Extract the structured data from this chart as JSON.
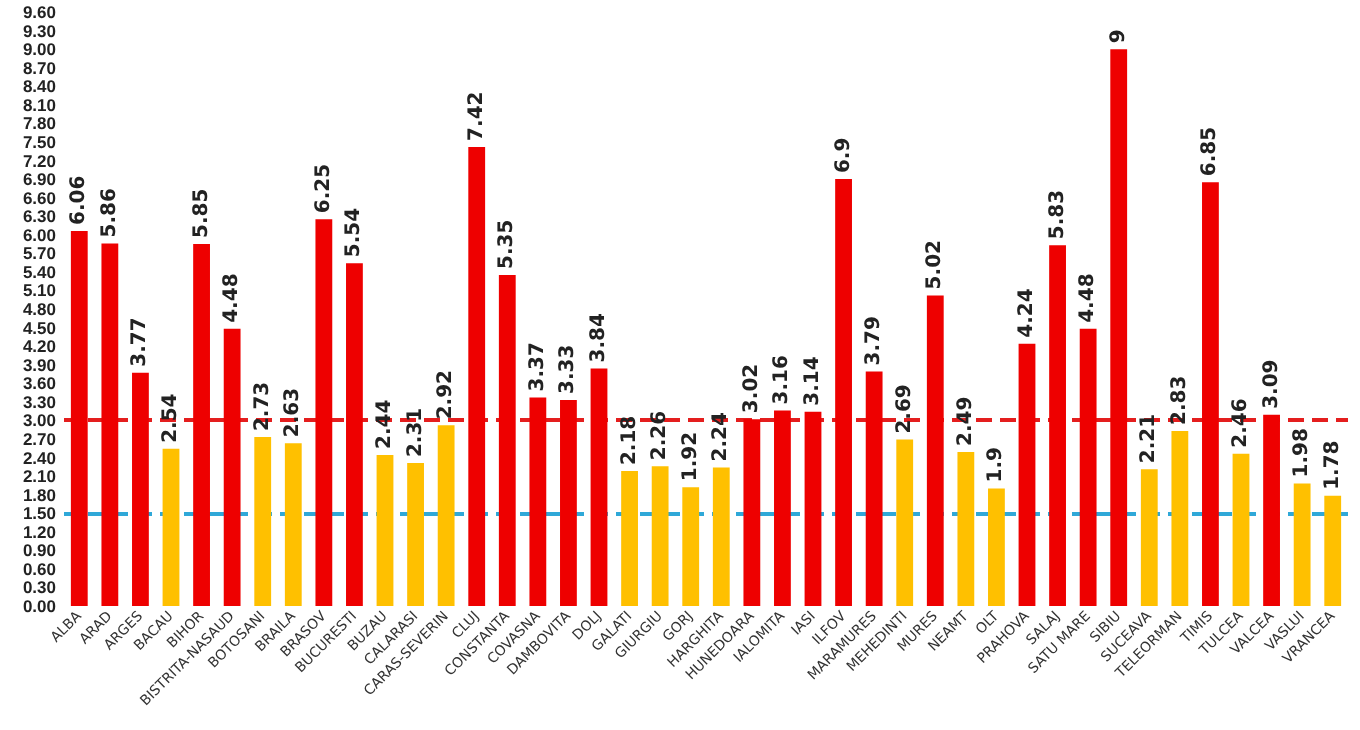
{
  "chart_data": {
    "type": "bar",
    "categories": [
      "ALBA",
      "ARAD",
      "ARGES",
      "BACAU",
      "BIHOR",
      "BISTRITA-NASAUD",
      "BOTOSANI",
      "BRAILA",
      "BRASOV",
      "BUCURESTI",
      "BUZAU",
      "CALARASI",
      "CARAS-SEVERIN",
      "CLUJ",
      "CONSTANTA",
      "COVASNA",
      "DAMBOVITA",
      "DOLJ",
      "GALATI",
      "GIURGIU",
      "GORJ",
      "HARGHITA",
      "HUNEDOARA",
      "IALOMITA",
      "IASI",
      "ILFOV",
      "MARAMURES",
      "MEHEDINTI",
      "MURES",
      "NEAMT",
      "OLT",
      "PRAHOVA",
      "SALAJ",
      "SATU MARE",
      "SIBIU",
      "SUCEAVA",
      "TELEORMAN",
      "TIMIS",
      "TULCEA",
      "VALCEA",
      "VASLUI",
      "VRANCEA"
    ],
    "values": [
      6.06,
      5.86,
      3.77,
      2.54,
      5.85,
      4.48,
      2.73,
      2.63,
      6.25,
      5.54,
      2.44,
      2.31,
      2.92,
      7.42,
      5.35,
      3.37,
      3.33,
      3.84,
      2.18,
      2.26,
      1.92,
      2.24,
      3.02,
      3.16,
      3.14,
      6.9,
      3.79,
      2.69,
      5.02,
      2.49,
      1.9,
      4.24,
      5.83,
      4.48,
      9,
      2.21,
      2.83,
      6.85,
      2.46,
      3.09,
      1.98,
      1.78
    ],
    "colors": [
      "#ee0000",
      "#ee0000",
      "#ee0000",
      "#ffc000",
      "#ee0000",
      "#ee0000",
      "#ffc000",
      "#ffc000",
      "#ee0000",
      "#ee0000",
      "#ffc000",
      "#ffc000",
      "#ffc000",
      "#ee0000",
      "#ee0000",
      "#ee0000",
      "#ee0000",
      "#ee0000",
      "#ffc000",
      "#ffc000",
      "#ffc000",
      "#ffc000",
      "#ee0000",
      "#ee0000",
      "#ee0000",
      "#ee0000",
      "#ee0000",
      "#ffc000",
      "#ee0000",
      "#ffc000",
      "#ffc000",
      "#ee0000",
      "#ee0000",
      "#ee0000",
      "#ee0000",
      "#ffc000",
      "#ffc000",
      "#ee0000",
      "#ffc000",
      "#ee0000",
      "#ffc000",
      "#ffc000"
    ],
    "data_labels": true,
    "ylim": [
      0,
      9.6
    ],
    "yticks": [
      {
        "value": 0,
        "label": "0.00"
      },
      {
        "value": 0.3,
        "label": "0.30"
      },
      {
        "value": 0.6,
        "label": "0.60"
      },
      {
        "value": 0.9,
        "label": "0.90"
      },
      {
        "value": 1.2,
        "label": "1.20"
      },
      {
        "value": 1.5,
        "label": "1.50"
      },
      {
        "value": 1.8,
        "label": "1.80"
      },
      {
        "value": 2.1,
        "label": "2.10"
      },
      {
        "value": 2.4,
        "label": "2.40"
      },
      {
        "value": 2.7,
        "label": "2.70"
      },
      {
        "value": 3,
        "label": "3.00"
      },
      {
        "value": 3.3,
        "label": "3.30"
      },
      {
        "value": 3.6,
        "label": "3.60"
      },
      {
        "value": 3.9,
        "label": "3.90"
      },
      {
        "value": 4.2,
        "label": "4.20"
      },
      {
        "value": 4.5,
        "label": "4.50"
      },
      {
        "value": 4.8,
        "label": "4.80"
      },
      {
        "value": 5.1,
        "label": "5.10"
      },
      {
        "value": 5.4,
        "label": "5.40"
      },
      {
        "value": 5.7,
        "label": "5.70"
      },
      {
        "value": 6,
        "label": "6.00"
      },
      {
        "value": 6.3,
        "label": "6.30"
      },
      {
        "value": 6.6,
        "label": "6.60"
      },
      {
        "value": 6.9,
        "label": "6.90"
      },
      {
        "value": 7.2,
        "label": "7.20"
      },
      {
        "value": 7.5,
        "label": "7.50"
      },
      {
        "value": 7.8,
        "label": "7.80"
      },
      {
        "value": 8.1,
        "label": "8.10"
      },
      {
        "value": 8.4,
        "label": "8.40"
      },
      {
        "value": 8.7,
        "label": "8.70"
      },
      {
        "value": 9,
        "label": "9.00"
      },
      {
        "value": 9.3,
        "label": "9.30"
      },
      {
        "value": 9.6,
        "label": "9.60"
      }
    ],
    "ref_lines": [
      {
        "axis": "y",
        "value": 3,
        "color": "#e41e1e",
        "line_style": "dashed"
      },
      {
        "axis": "y",
        "value": 1.5,
        "color": "#2fa8d8",
        "line_style": "dashed"
      }
    ],
    "grid": false
  }
}
